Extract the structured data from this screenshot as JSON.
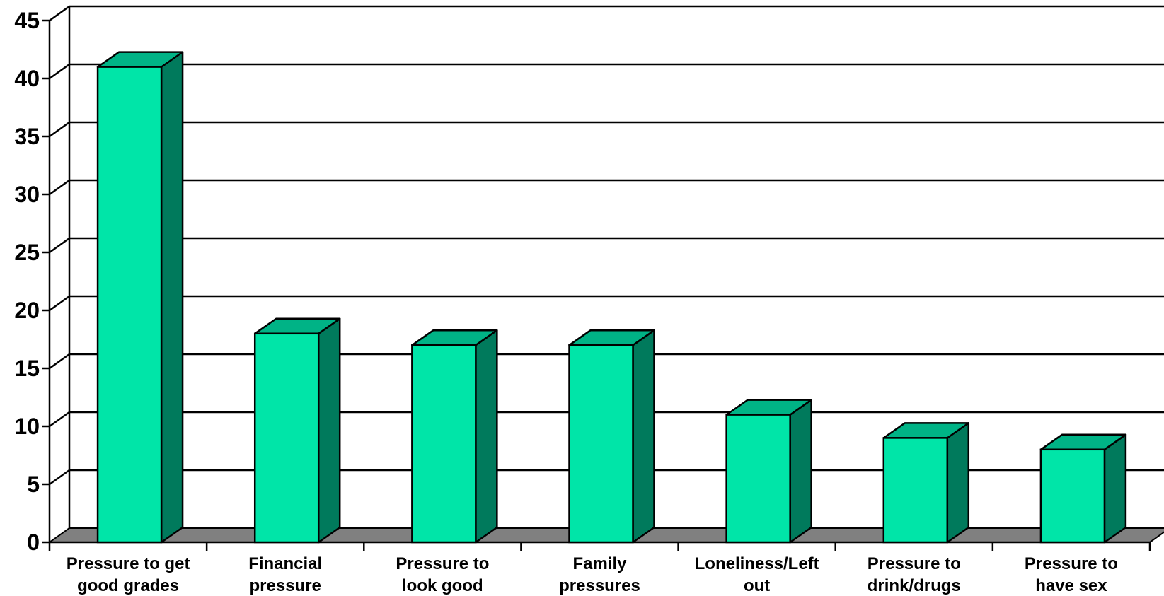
{
  "chart_data": {
    "type": "bar",
    "style": "3d-column",
    "categories": [
      [
        "Pressure to get",
        "good grades"
      ],
      [
        "Financial",
        "pressure"
      ],
      [
        "Pressure to",
        "look good"
      ],
      [
        "Family",
        "pressures"
      ],
      [
        "Loneliness/Left",
        "out"
      ],
      [
        "Pressure to",
        "drink/drugs"
      ],
      [
        "Pressure to",
        "have sex"
      ]
    ],
    "values": [
      41,
      18,
      17,
      17,
      11,
      9,
      8
    ],
    "ylim": [
      0,
      45
    ],
    "yticks": [
      0,
      5,
      10,
      15,
      20,
      25,
      30,
      35,
      40,
      45
    ],
    "grid": true,
    "legend": "none",
    "colors": {
      "bar_front": "#00e5a8",
      "bar_top": "#00b386",
      "bar_side": "#007a5c",
      "floor": "#808080",
      "outline": "#000000"
    }
  }
}
